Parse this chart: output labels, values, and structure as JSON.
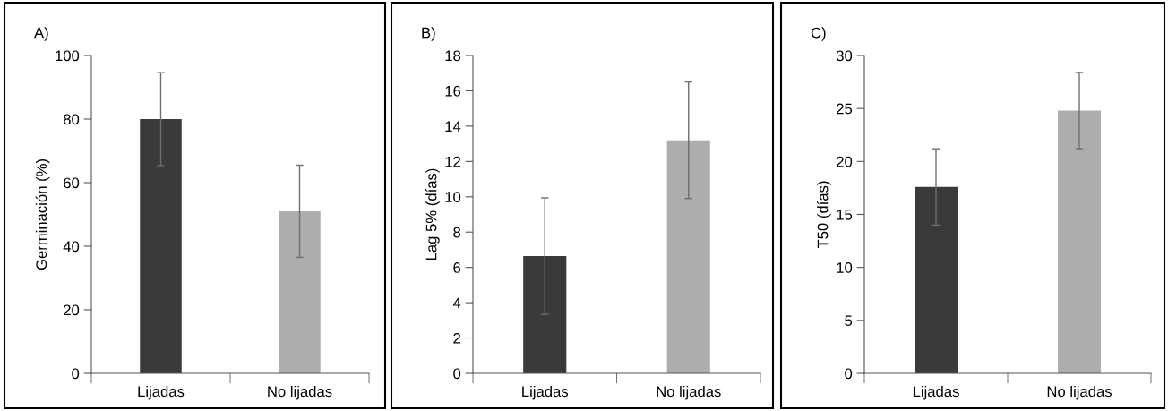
{
  "chart_data": [
    {
      "type": "bar",
      "title": "A)",
      "ylabel": "Germinación (%)",
      "categories": [
        "Lijadas",
        "No lijadas"
      ],
      "values": [
        80,
        51.0
      ],
      "errors": [
        14.6,
        14.5
      ],
      "colors": [
        "#3a3a3a",
        "#adadad"
      ],
      "ylim": [
        0,
        100
      ],
      "yticks": [
        0,
        20,
        40,
        60,
        80,
        100
      ],
      "grid": false,
      "legend": false
    },
    {
      "type": "bar",
      "title": "B)",
      "ylabel": "Lag 5% (días)",
      "categories": [
        "Lijadas",
        "No lijadas"
      ],
      "values": [
        6.64,
        13.2
      ],
      "errors": [
        3.3,
        3.3
      ],
      "colors": [
        "#3a3a3a",
        "#adadad"
      ],
      "ylim": [
        0,
        18
      ],
      "yticks": [
        0,
        2,
        4,
        6,
        8,
        10,
        12,
        14,
        16,
        18
      ],
      "grid": false,
      "legend": false
    },
    {
      "type": "bar",
      "title": "C)",
      "ylabel": "T50 (días)",
      "categories": [
        "Lijadas",
        "No lijadas"
      ],
      "values": [
        17.6,
        24.8
      ],
      "errors": [
        3.6,
        3.6
      ],
      "colors": [
        "#3a3a3a",
        "#adadad"
      ],
      "ylim": [
        0,
        30
      ],
      "yticks": [
        0,
        5,
        10,
        15,
        20,
        25,
        30
      ],
      "grid": false,
      "legend": false
    }
  ]
}
